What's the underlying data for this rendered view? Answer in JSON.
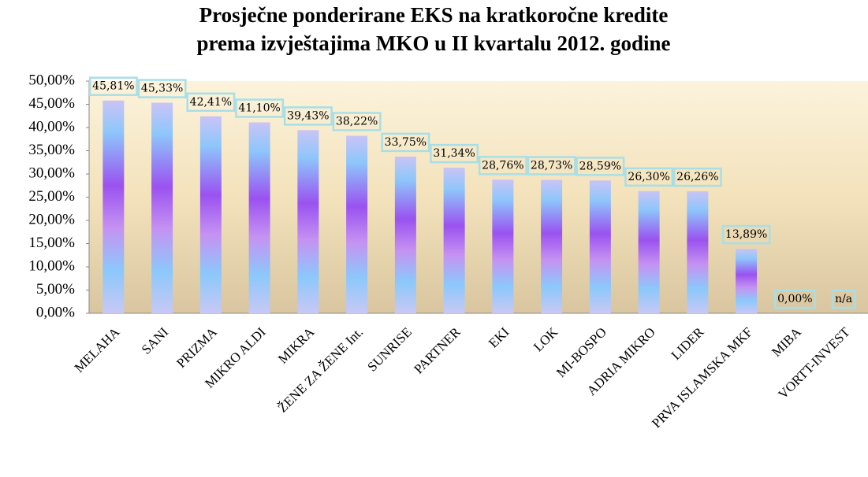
{
  "chart_data": {
    "type": "bar",
    "title": [
      "Prosječne ponderirane EKS na kratkoročne kredite",
      "prema izvještajima MKO u II kvartalu 2012. godine"
    ],
    "categories": [
      "MELAHA",
      "SANI",
      "PRIZMA",
      "MIKRO ALDI",
      "MIKRA",
      "ŽENE ZA ŽENE Int.",
      "SUNRISE",
      "PARTNER",
      "EKI",
      "LOK",
      "MI-BOSPO",
      "ADRIA MIKRO",
      "LIDER",
      "PRVA ISLAMSKA MKF",
      "MIBA",
      "VORTT-INVEST"
    ],
    "values": [
      45.81,
      45.33,
      42.41,
      41.1,
      39.43,
      38.22,
      33.75,
      31.34,
      28.76,
      28.73,
      28.59,
      26.3,
      26.26,
      13.89,
      0,
      null
    ],
    "value_labels": [
      "45,81%",
      "45,33%",
      "42,41%",
      "41,10%",
      "39,43%",
      "38,22%",
      "33,75%",
      "31,34%",
      "28,76%",
      "28,73%",
      "28,59%",
      "26,30%",
      "26,26%",
      "13,89%",
      "0,00%",
      "n/a"
    ],
    "ylim": [
      0,
      50
    ],
    "yticks": [
      {
        "value": 0,
        "label": "0,00%"
      },
      {
        "value": 5,
        "label": "5,00%"
      },
      {
        "value": 10,
        "label": "10,00%"
      },
      {
        "value": 15,
        "label": "15,00%"
      },
      {
        "value": 20,
        "label": "20,00%"
      },
      {
        "value": 25,
        "label": "25,00%"
      },
      {
        "value": 30,
        "label": "30,00%"
      },
      {
        "value": 35,
        "label": "35,00%"
      },
      {
        "value": 40,
        "label": "40,00%"
      },
      {
        "value": 45,
        "label": "45,00%"
      },
      {
        "value": 50,
        "label": "50,00%"
      }
    ]
  }
}
